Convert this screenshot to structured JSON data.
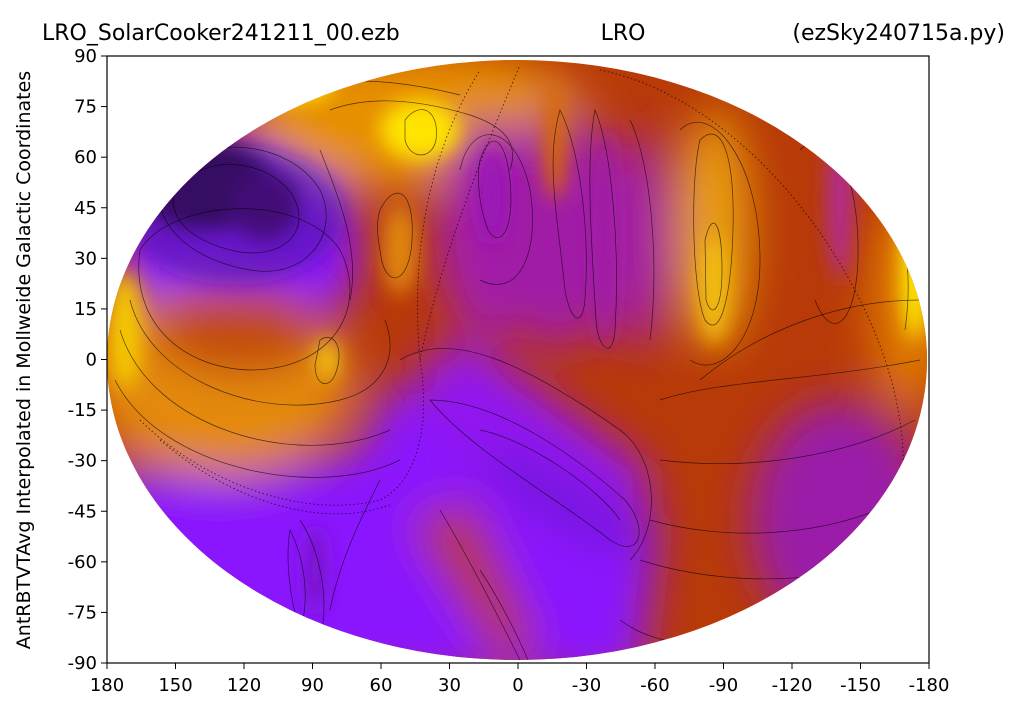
{
  "chart_data": {
    "type": "heatmap",
    "projection": "mollweide",
    "title_left": "LRO_SolarCooker241211_00.ezb",
    "title_center": "LRO",
    "title_right": "(ezSky240715a.py)",
    "xlabel": "",
    "ylabel": "AntRBTVTAvg Interpolated in Mollweide Galactic Coordinates",
    "x_ticks": [
      "180",
      "150",
      "120",
      "90",
      "60",
      "30",
      "0",
      "-30",
      "-60",
      "-90",
      "-120",
      "-150",
      "-180"
    ],
    "x_tick_values": [
      180,
      150,
      120,
      90,
      60,
      30,
      0,
      -30,
      -60,
      -90,
      -120,
      -150,
      -180
    ],
    "y_ticks": [
      "90",
      "75",
      "60",
      "45",
      "30",
      "15",
      "0",
      "-15",
      "-30",
      "-45",
      "-60",
      "-75",
      "-90"
    ],
    "y_tick_values": [
      90,
      75,
      60,
      45,
      30,
      15,
      0,
      -15,
      -30,
      -45,
      -60,
      -75,
      -90
    ],
    "xlim": [
      180,
      -180
    ],
    "ylim": [
      -90,
      90
    ],
    "colormap": "gnuplot",
    "contours": true,
    "colors": {
      "low": "#1a0014",
      "violet": "#8a17ff",
      "purple": "#a31ca0",
      "redbrown": "#b82f00",
      "orange": "#e08a00",
      "yellow": "#ffee00"
    },
    "features": [
      {
        "lon": 138,
        "lat": 48,
        "level": 0.0,
        "label_level": "darkest"
      },
      {
        "lon": 112,
        "lat": 45,
        "level": 0.05
      },
      {
        "lon": 70,
        "lat": -35,
        "level": 0.35
      },
      {
        "lon": -35,
        "lat": -45,
        "level": 0.3
      },
      {
        "lon": 5,
        "lat": 45,
        "level": 0.45
      },
      {
        "lon": -30,
        "lat": 40,
        "level": 0.45
      },
      {
        "lon": -90,
        "lat": 20,
        "level": 0.88
      },
      {
        "lon": 85,
        "lat": 0,
        "level": 0.9
      },
      {
        "lon": 45,
        "lat": 72,
        "level": 0.95
      },
      {
        "lon": -170,
        "lat": 15,
        "level": 0.97
      },
      {
        "lon": 175,
        "lat": 5,
        "level": 0.85
      }
    ]
  }
}
